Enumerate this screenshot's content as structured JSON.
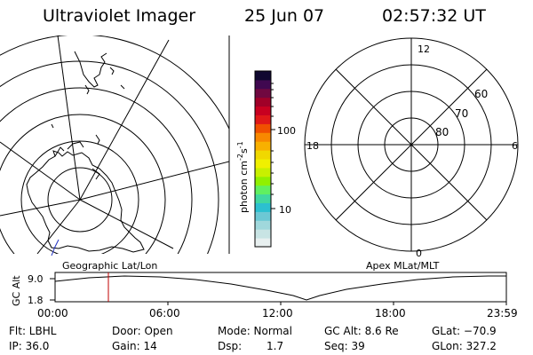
{
  "header": {
    "title": "Ultraviolet Imager",
    "date": "25 Jun 07",
    "time": "02:57:32 UT"
  },
  "left_panel": {
    "label": "Geographic Lat/Lon"
  },
  "right_panel": {
    "label": "Apex MLat/MLT",
    "mlt_labels": {
      "top": "12",
      "right": "6",
      "bottom": "0",
      "left": "18"
    },
    "lat_labels": [
      "60",
      "70",
      "80"
    ]
  },
  "colorbar": {
    "axis_label_main": "photon cm",
    "axis_label_sup1": "-2",
    "axis_label_mid": "s",
    "axis_label_sup2": "-1",
    "ticks": [
      "100",
      "10"
    ],
    "colors": [
      "#e8f0f0",
      "#c8e4e4",
      "#a0d8dc",
      "#6cc8d4",
      "#2cc0d0",
      "#40d8a0",
      "#60f060",
      "#90f000",
      "#c8f000",
      "#f0f000",
      "#f0d800",
      "#f8b000",
      "#f88800",
      "#f05000",
      "#e01818",
      "#c80020",
      "#a00028",
      "#700840",
      "#400850",
      "#100830"
    ]
  },
  "timeline": {
    "y_axis_label": "GC Alt",
    "y_ticks": [
      "9.0",
      "1.8"
    ],
    "x_ticks": [
      "00:00",
      "06:00",
      "12:00",
      "18:00",
      "23:59"
    ],
    "marker_color": "#c00000"
  },
  "info": {
    "filter": "Flt: LBHL",
    "door": "Door: Open",
    "mode": "Mode: Normal",
    "gc_alt": "GC Alt: 8.6 Re",
    "glat": "GLat: −70.9",
    "ip": "IP: 36.0",
    "gain": "Gain: 14",
    "dsp_label": "Dsp:",
    "dsp_value": "1.7",
    "seq": "Seq: 39",
    "glon": "GLon: 327.2"
  }
}
